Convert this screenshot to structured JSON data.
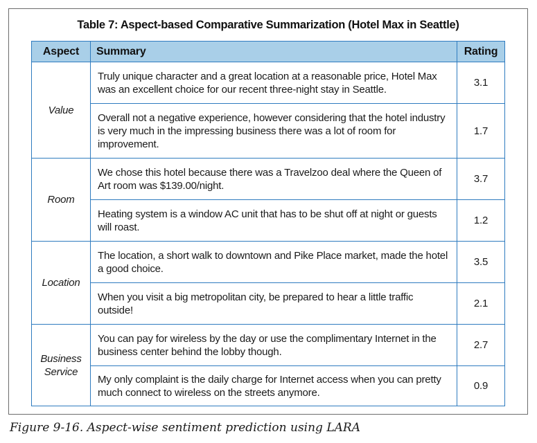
{
  "table_title": "Table 7: Aspect-based Comparative Summarization (Hotel Max in Seattle)",
  "headers": {
    "aspect": "Aspect",
    "summary": "Summary",
    "rating": "Rating"
  },
  "groups": [
    {
      "aspect": "Value",
      "rows": [
        {
          "summary": "Truly unique character and a great location at a reasonable price, Hotel Max was an excellent choice for our recent three-night stay in Seattle.",
          "rating": "3.1"
        },
        {
          "summary": "Overall not a negative experience, however considering that the hotel industry is very much in the impressing business there was a lot of room for improvement.",
          "rating": "1.7"
        }
      ]
    },
    {
      "aspect": "Room",
      "rows": [
        {
          "summary": "We chose this hotel because there was a Travelzoo deal where the Queen of Art room was $139.00/night.",
          "rating": "3.7"
        },
        {
          "summary": "Heating system is a window AC unit that has to be shut off at night or guests will roast.",
          "rating": "1.2"
        }
      ]
    },
    {
      "aspect": "Location",
      "rows": [
        {
          "summary": "The location, a short walk to downtown and Pike Place market, made the hotel a good choice.",
          "rating": "3.5"
        },
        {
          "summary": "When you visit a big metropolitan city, be prepared to hear a little traffic outside!",
          "rating": "2.1"
        }
      ]
    },
    {
      "aspect": "Business Service",
      "rows": [
        {
          "summary": "You can pay for wireless by the day or use the complimentary Internet in the business center behind the lobby though.",
          "rating": "2.7"
        },
        {
          "summary": "My only complaint is the daily charge for Internet access when you can pretty much connect to wireless on the streets anymore.",
          "rating": "0.9"
        }
      ]
    }
  ],
  "caption": "Figure 9-16. Aspect-wise sentiment prediction using LARA"
}
